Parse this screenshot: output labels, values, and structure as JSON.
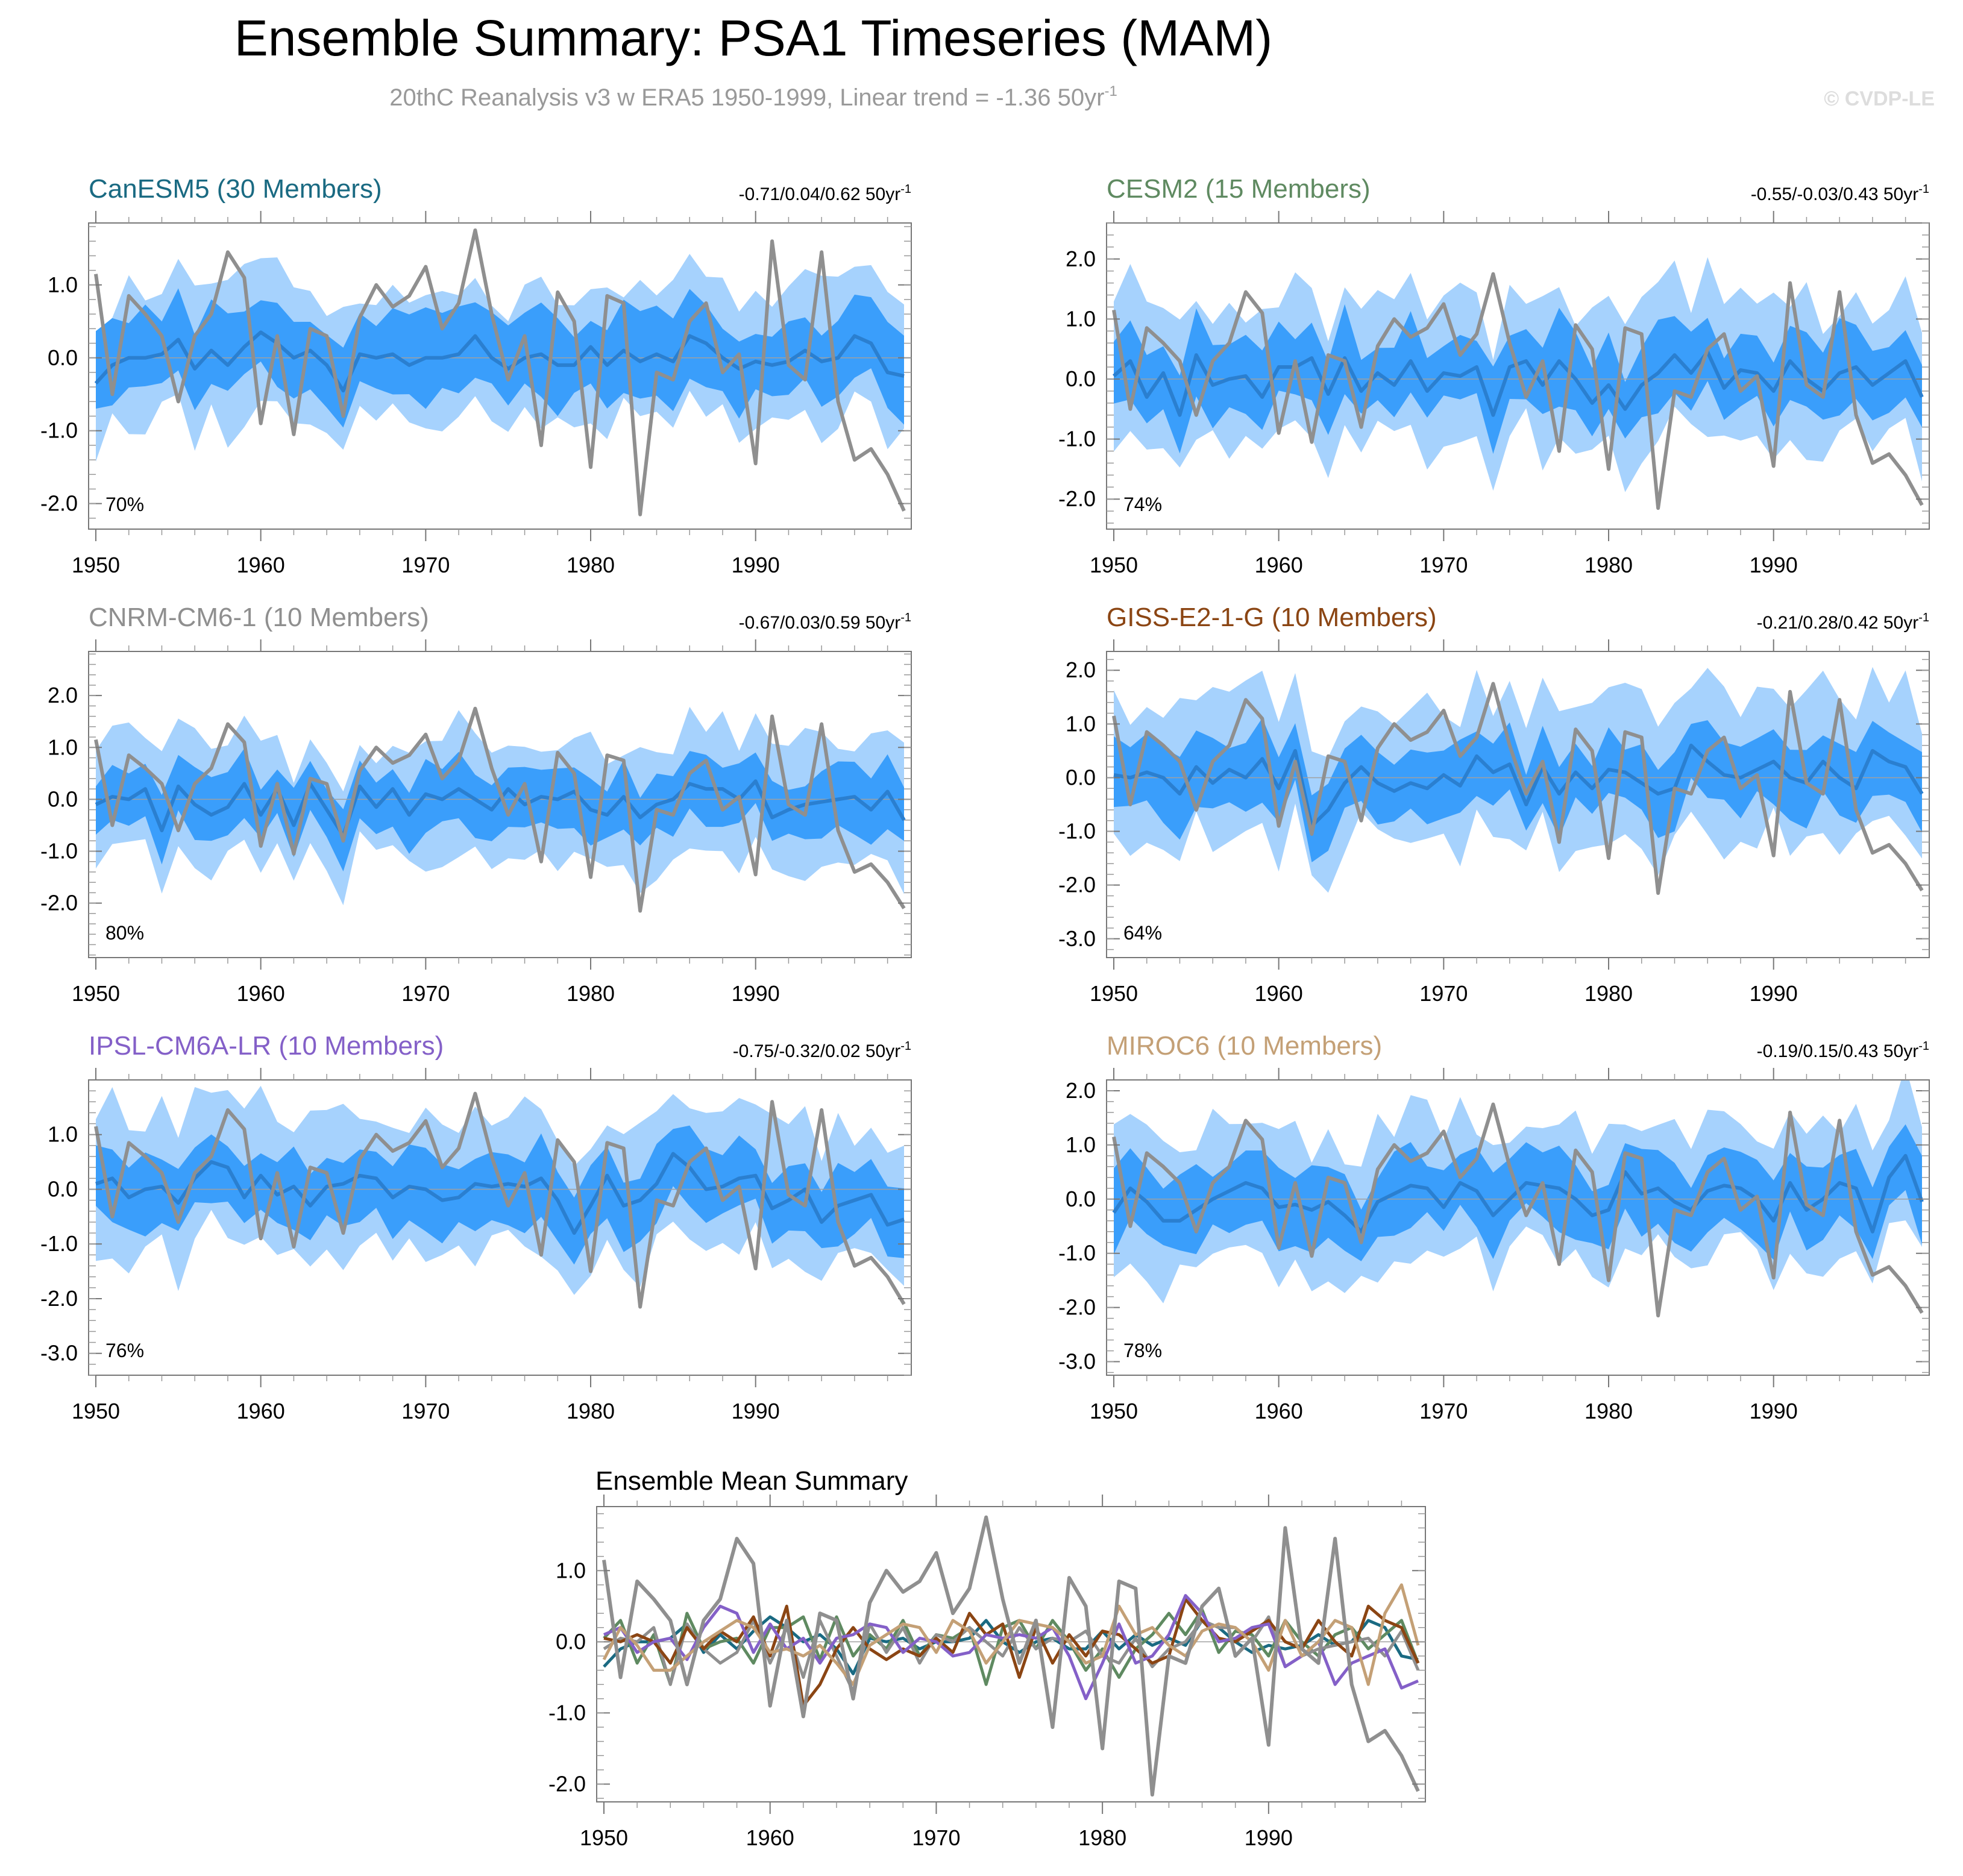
{
  "title": "Ensemble Summary: PSA1 Timeseries (MAM)",
  "subtitle": {
    "text": "20thC Reanalysis v3 w ERA5 1950-1999, Linear trend = -1.36 50yr",
    "superscript": "-1"
  },
  "watermark": "© CVDP-LE",
  "colors": {
    "outer_band": "#a6d2fd",
    "inner_band": "#3a9efb",
    "ensemble_mean": "#2a7fd0",
    "observations": "#8f8f8f",
    "zero_line": "#a0a0a0"
  },
  "chart_data": [
    {
      "type": "line",
      "title": "CanESM5 (30 Members)",
      "title_color": "#1a6a82",
      "trend_text": "-0.71/0.04/0.62 50yr",
      "trend_sup": "-1",
      "percent_label": "70%",
      "xlim": [
        1950,
        1999
      ],
      "ylim": [
        -2.35,
        1.85
      ],
      "yticks": [
        -2.0,
        -1.0,
        0.0,
        1.0
      ],
      "ytick_labels": [
        "-2.0",
        "-1.0",
        "0.0",
        "1.0"
      ],
      "xticks": [
        1950,
        1960,
        1970,
        1980,
        1990
      ],
      "xtick_labels": [
        "1950",
        "1960",
        "1970",
        "1980",
        "1990"
      ],
      "range_seeds": [
        1.3,
        0.7,
        1.0,
        0.55
      ],
      "mean_values": [
        -0.35,
        -0.1,
        0.0,
        0.0,
        0.05,
        0.25,
        -0.15,
        0.1,
        -0.1,
        0.15,
        0.35,
        0.2,
        0.0,
        0.1,
        -0.1,
        -0.45,
        0.05,
        0.0,
        0.05,
        -0.1,
        0.0,
        0.0,
        0.05,
        0.3,
        0.0,
        -0.15,
        0.0,
        0.05,
        -0.1,
        -0.1,
        0.15,
        -0.1,
        0.1,
        -0.05,
        0.05,
        -0.05,
        0.3,
        0.2,
        0.0,
        -0.15,
        -0.05,
        -0.1,
        -0.05,
        0.1,
        -0.05,
        0.0,
        0.3,
        0.2,
        -0.2,
        -0.25
      ]
    },
    {
      "type": "line",
      "title": "CESM2 (15 Members)",
      "title_color": "#5f8a61",
      "trend_text": "-0.55/-0.03/0.43 50yr",
      "trend_sup": "-1",
      "percent_label": "74%",
      "xlim": [
        1950,
        1999
      ],
      "ylim": [
        -2.5,
        2.6
      ],
      "yticks": [
        -2.0,
        -1.0,
        0.0,
        1.0,
        2.0
      ],
      "ytick_labels": [
        "-2.0",
        "-1.0",
        "0.0",
        "1.0",
        "2.0"
      ],
      "xticks": [
        1950,
        1960,
        1970,
        1980,
        1990
      ],
      "xtick_labels": [
        "1950",
        "1960",
        "1970",
        "1980",
        "1990"
      ],
      "range_seeds": [
        2.0,
        0.9,
        1.3,
        0.6
      ],
      "mean_values": [
        0.05,
        0.3,
        -0.3,
        0.1,
        -0.6,
        0.4,
        -0.1,
        0.0,
        0.05,
        -0.3,
        0.2,
        0.2,
        0.35,
        -0.25,
        0.35,
        -0.2,
        0.1,
        -0.1,
        0.3,
        -0.2,
        0.1,
        0.05,
        0.2,
        -0.6,
        0.2,
        0.3,
        -0.1,
        0.3,
        0.0,
        -0.4,
        -0.1,
        -0.5,
        -0.1,
        0.1,
        0.4,
        0.1,
        0.45,
        -0.15,
        0.15,
        0.1,
        -0.2,
        0.3,
        0.0,
        -0.2,
        0.1,
        0.2,
        -0.1,
        0.1,
        0.3,
        -0.3
      ]
    },
    {
      "type": "line",
      "title": "CNRM-CM6-1 (10 Members)",
      "title_color": "#8f8f8f",
      "trend_text": "-0.67/0.03/0.59 50yr",
      "trend_sup": "-1",
      "percent_label": "80%",
      "xlim": [
        1950,
        1999
      ],
      "ylim": [
        -3.05,
        2.85
      ],
      "yticks": [
        -2.0,
        -1.0,
        0.0,
        1.0,
        2.0
      ],
      "ytick_labels": [
        "-2.0",
        "-1.0",
        "0.0",
        "1.0",
        "2.0"
      ],
      "xticks": [
        1950,
        1960,
        1970,
        1980,
        1990
      ],
      "xtick_labels": [
        "1950",
        "1960",
        "1970",
        "1980",
        "1990"
      ],
      "range_seeds": [
        1.8,
        0.7,
        1.4,
        0.6
      ],
      "mean_values": [
        -0.1,
        0.05,
        0.0,
        0.2,
        -0.6,
        0.25,
        -0.1,
        -0.3,
        -0.15,
        0.3,
        -0.3,
        0.2,
        -0.5,
        0.3,
        -0.2,
        -0.7,
        0.25,
        -0.15,
        0.2,
        -0.3,
        0.1,
        0.0,
        0.2,
        0.0,
        -0.2,
        0.2,
        -0.1,
        0.05,
        0.0,
        0.15,
        -0.2,
        -0.3,
        0.05,
        -0.35,
        -0.1,
        0.0,
        0.3,
        0.2,
        0.2,
        0.0,
        0.35,
        -0.35,
        -0.2,
        -0.1,
        -0.05,
        0.0,
        0.05,
        -0.2,
        0.15,
        -0.4
      ]
    },
    {
      "type": "line",
      "title": "GISS-E2-1-G (10 Members)",
      "title_color": "#8b4513",
      "trend_text": "-0.21/0.28/0.42 50yr",
      "trend_sup": "-1",
      "percent_label": "64%",
      "xlim": [
        1950,
        1999
      ],
      "ylim": [
        -3.35,
        2.35
      ],
      "yticks": [
        -3.0,
        -2.0,
        -1.0,
        0.0,
        1.0,
        2.0
      ],
      "ytick_labels": [
        "-3.0",
        "-2.0",
        "-1.0",
        "0.0",
        "1.0",
        "2.0"
      ],
      "xticks": [
        1950,
        1960,
        1970,
        1980,
        1990
      ],
      "xtick_labels": [
        "1950",
        "1960",
        "1970",
        "1980",
        "1990"
      ],
      "range_seeds": [
        2.2,
        0.85,
        1.5,
        0.7
      ],
      "mean_values": [
        0.05,
        0.0,
        0.1,
        0.0,
        -0.3,
        0.2,
        -0.1,
        0.15,
        0.0,
        0.35,
        -0.2,
        0.5,
        -0.9,
        -0.6,
        -0.1,
        0.2,
        -0.1,
        -0.25,
        -0.1,
        -0.2,
        0.05,
        -0.15,
        0.4,
        0.1,
        0.25,
        -0.5,
        0.2,
        -0.3,
        0.1,
        -0.2,
        0.15,
        0.1,
        -0.1,
        -0.3,
        -0.2,
        0.6,
        0.3,
        0.05,
        0.0,
        0.15,
        0.3,
        0.0,
        -0.1,
        0.3,
        0.0,
        -0.2,
        0.5,
        0.3,
        0.2,
        -0.3
      ]
    },
    {
      "type": "line",
      "title": "IPSL-CM6A-LR (10 Members)",
      "title_color": "#8460c8",
      "trend_text": "-0.75/-0.32/0.02 50yr",
      "trend_sup": "-1",
      "percent_label": "76%",
      "xlim": [
        1950,
        1999
      ],
      "ylim": [
        -3.4,
        2.0
      ],
      "yticks": [
        -3.0,
        -2.0,
        -1.0,
        0.0,
        1.0
      ],
      "ytick_labels": [
        "-3.0",
        "-2.0",
        "-1.0",
        "0.0",
        "1.0"
      ],
      "xticks": [
        1950,
        1960,
        1970,
        1980,
        1990
      ],
      "xtick_labels": [
        "1950",
        "1960",
        "1970",
        "1980",
        "1990"
      ],
      "range_seeds": [
        2.1,
        0.8,
        1.5,
        0.7
      ],
      "mean_values": [
        0.1,
        0.2,
        -0.15,
        0.0,
        0.05,
        -0.25,
        0.2,
        0.5,
        0.4,
        -0.15,
        0.25,
        -0.1,
        0.05,
        -0.3,
        0.05,
        0.1,
        0.25,
        0.2,
        -0.15,
        0.05,
        0.0,
        -0.2,
        -0.15,
        0.1,
        0.05,
        0.1,
        0.05,
        0.2,
        -0.2,
        -0.8,
        -0.3,
        0.25,
        -0.3,
        -0.2,
        0.1,
        0.65,
        0.4,
        0.0,
        0.05,
        0.2,
        0.25,
        -0.35,
        -0.2,
        0.0,
        -0.6,
        -0.3,
        -0.2,
        -0.1,
        -0.65,
        -0.55
      ]
    },
    {
      "type": "line",
      "title": "MIROC6 (10 Members)",
      "title_color": "#c4a076",
      "trend_text": "-0.19/0.15/0.43 50yr",
      "trend_sup": "-1",
      "percent_label": "78%",
      "xlim": [
        1950,
        1999
      ],
      "ylim": [
        -3.25,
        2.2
      ],
      "yticks": [
        -3.0,
        -2.0,
        -1.0,
        0.0,
        1.0,
        2.0
      ],
      "ytick_labels": [
        "-3.0",
        "-2.0",
        "-1.0",
        "0.0",
        "1.0",
        "2.0"
      ],
      "xticks": [
        1950,
        1960,
        1970,
        1980,
        1990
      ],
      "xtick_labels": [
        "1950",
        "1960",
        "1970",
        "1980",
        "1990"
      ],
      "range_seeds": [
        2.0,
        0.85,
        1.4,
        0.65
      ],
      "mean_values": [
        -0.25,
        0.2,
        -0.05,
        -0.4,
        -0.4,
        -0.2,
        0.0,
        0.15,
        0.3,
        0.2,
        -0.15,
        -0.1,
        -0.2,
        -0.05,
        -0.3,
        -0.6,
        -0.05,
        0.1,
        0.25,
        0.2,
        -0.15,
        0.3,
        0.15,
        -0.3,
        0.0,
        0.3,
        0.25,
        0.2,
        0.0,
        -0.3,
        -0.2,
        0.5,
        0.1,
        0.2,
        -0.05,
        -0.2,
        0.15,
        0.25,
        0.2,
        0.0,
        -0.4,
        0.3,
        -0.2,
        0.0,
        0.3,
        0.2,
        -0.6,
        0.4,
        0.8,
        -0.05
      ]
    },
    {
      "type": "line",
      "title": "Ensemble Mean Summary",
      "title_color": "#000000",
      "xlim": [
        1950,
        1999
      ],
      "ylim": [
        -2.25,
        1.9
      ],
      "yticks": [
        -2.0,
        -1.0,
        0.0,
        1.0
      ],
      "ytick_labels": [
        "-2.0",
        "-1.0",
        "0.0",
        "1.0"
      ],
      "xticks": [
        1950,
        1960,
        1970,
        1980,
        1990
      ],
      "xtick_labels": [
        "1950",
        "1960",
        "1970",
        "1980",
        "1990"
      ],
      "series_colors": [
        "#1a6a82",
        "#5f8a61",
        "#8f8f8f",
        "#8b4513",
        "#8460c8",
        "#c4a076"
      ],
      "series_source": [
        "CanESM5",
        "CESM2",
        "CNRM-CM6-1",
        "GISS-E2-1-G",
        "IPSL-CM6A-LR",
        "MIROC6"
      ]
    }
  ],
  "observed_values": [
    1.15,
    -0.5,
    0.85,
    0.6,
    0.3,
    -0.6,
    0.3,
    0.6,
    1.45,
    1.1,
    -0.9,
    0.3,
    -1.05,
    0.4,
    0.3,
    -0.8,
    0.55,
    1.0,
    0.7,
    0.85,
    1.25,
    0.4,
    0.75,
    1.75,
    0.6,
    -0.3,
    0.3,
    -1.2,
    0.9,
    0.5,
    -1.5,
    0.85,
    0.75,
    -2.15,
    -0.2,
    -0.3,
    0.5,
    0.75,
    -0.2,
    0.05,
    -1.45,
    1.6,
    -0.1,
    -0.3,
    1.45,
    -0.6,
    -1.4,
    -1.25,
    -1.6,
    -2.1
  ]
}
